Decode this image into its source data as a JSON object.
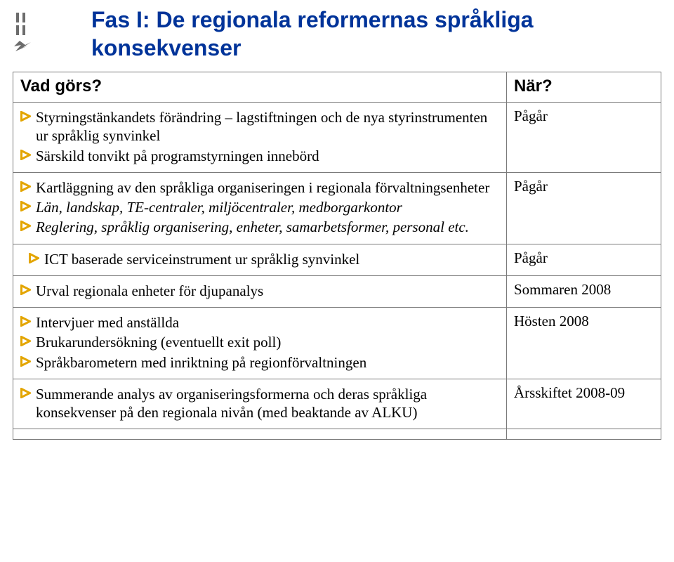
{
  "colors": {
    "title": "#003399",
    "arrow": "#e3a500",
    "border": "#7a7a7a",
    "text": "#000000",
    "logo_grey": "#6c6c6c"
  },
  "title": {
    "line1": "Fas I: De regionala reformernas språkliga",
    "line2": "konsekvenser"
  },
  "header": {
    "left": "Vad görs?",
    "right": "När?"
  },
  "rows": [
    {
      "items": [
        {
          "text": "Styrningstänkandets förändring – lagstiftningen och de nya styrinstrumenten ur språklig synvinkel"
        },
        {
          "text": "Särskild tonvikt på programstyrningen innebörd"
        }
      ],
      "right": "Pågår"
    },
    {
      "items": [
        {
          "text": "Kartläggning av den språkliga organiseringen i regionala förvaltningsenheter"
        },
        {
          "text": "Län, landskap, TE-centraler, miljöcentraler, medborgarkontor",
          "italic": true
        },
        {
          "text": "Reglering, språklig organisering, enheter, samarbetsformer, personal etc.",
          "italic": true
        }
      ],
      "right": "Pågår"
    },
    {
      "items": [
        {
          "text": "ICT baserade serviceinstrument ur språklig synvinkel",
          "indent": true
        }
      ],
      "right": "Pågår"
    },
    {
      "items": [
        {
          "text": "Urval regionala enheter för djupanalys"
        }
      ],
      "right": "Sommaren 2008"
    },
    {
      "items": [
        {
          "text": "Intervjuer med anställda"
        },
        {
          "text": "Brukarundersökning (eventuellt exit poll)"
        },
        {
          "text": "Språkbarometern med inriktning på regionförvaltningen"
        }
      ],
      "right": "Hösten 2008"
    },
    {
      "items": [
        {
          "text": "Summerande analys av organiseringsformerna och deras språkliga konsekvenser på den regionala nivån (med beaktande av ALKU)"
        }
      ],
      "right": "Årsskiftet 2008-09"
    }
  ]
}
